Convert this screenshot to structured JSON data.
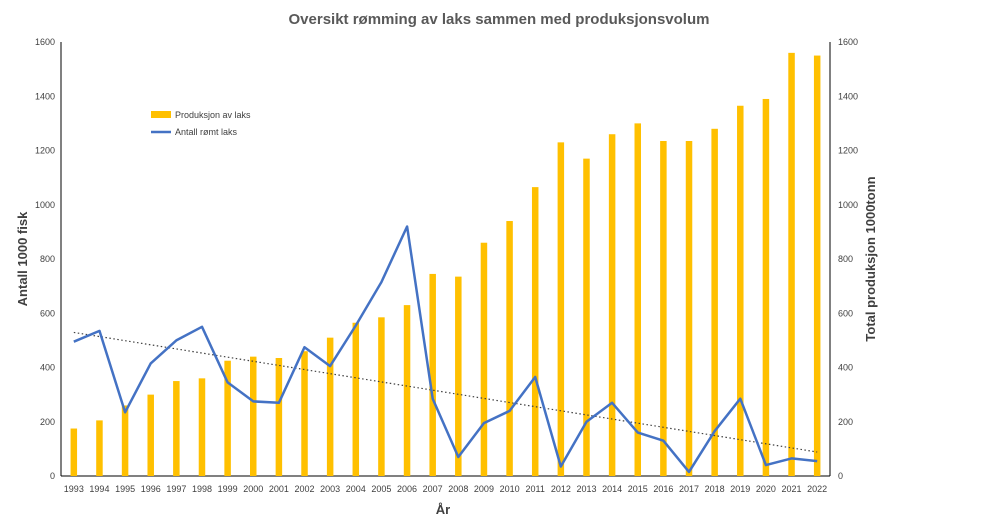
{
  "chart_data": {
    "type": "bar",
    "title": "Oversikt rømming av laks sammen med produksjonsvolum",
    "xlabel": "År",
    "ylabel": "Antall 1000 fisk",
    "y2label": "Total produksjon 1000tonn",
    "ylim": [
      0,
      1600
    ],
    "y2lim": [
      0,
      1600
    ],
    "yticks": [
      0,
      200,
      400,
      600,
      800,
      1000,
      1200,
      1400,
      1600
    ],
    "grid": false,
    "legend_position": "top-left",
    "categories": [
      "1993",
      "1994",
      "1995",
      "1996",
      "1997",
      "1998",
      "1999",
      "2000",
      "2001",
      "2002",
      "2003",
      "2004",
      "2005",
      "2006",
      "2007",
      "2008",
      "2009",
      "2010",
      "2011",
      "2012",
      "2013",
      "2014",
      "2015",
      "2016",
      "2017",
      "2018",
      "2019",
      "2020",
      "2021",
      "2022"
    ],
    "series": [
      {
        "name": "Produksjon av laks",
        "type": "bar",
        "axis": "right",
        "color": "#ffc000",
        "values": [
          175,
          205,
          260,
          300,
          350,
          360,
          425,
          440,
          435,
          460,
          510,
          565,
          585,
          630,
          745,
          735,
          860,
          940,
          1065,
          1230,
          1170,
          1260,
          1300,
          1235,
          1235,
          1280,
          1365,
          1390,
          1560,
          1550
        ]
      },
      {
        "name": "Antall rømt laks",
        "type": "line",
        "axis": "left",
        "color": "#4472c4",
        "values": [
          495,
          535,
          235,
          415,
          500,
          550,
          345,
          275,
          270,
          475,
          405,
          555,
          715,
          920,
          285,
          70,
          195,
          240,
          365,
          35,
          200,
          270,
          160,
          130,
          15,
          165,
          285,
          40,
          65,
          55
        ]
      }
    ],
    "trendline": {
      "of_series": "Antall rømt laks",
      "type": "linear",
      "color": "#404040",
      "style": "dotted"
    }
  }
}
